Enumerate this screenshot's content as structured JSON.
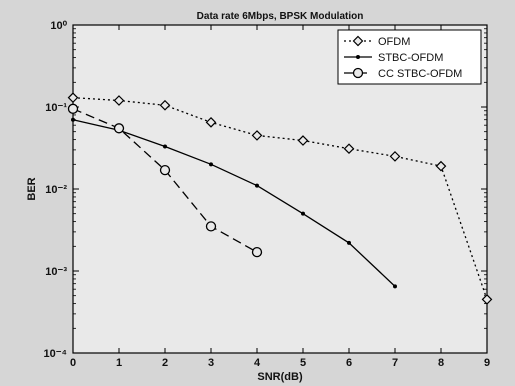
{
  "chart_data": {
    "type": "line",
    "title": "Data rate 6Mbps, BPSK Modulation",
    "xlabel": "SNR(dB)",
    "ylabel": "BER",
    "xlim": [
      0,
      9
    ],
    "ylim": [
      0.0001,
      1
    ],
    "yscale": "log",
    "grid": false,
    "legend_position": "top-right",
    "x_ticks": [
      "0",
      "1",
      "2",
      "3",
      "4",
      "5",
      "6",
      "7",
      "8",
      "9"
    ],
    "y_ticks": [
      {
        "value": 1,
        "label": "10⁰"
      },
      {
        "value": 0.1,
        "label": "10⁻¹"
      },
      {
        "value": 0.01,
        "label": "10⁻²"
      },
      {
        "value": 0.001,
        "label": "10⁻³"
      },
      {
        "value": 0.0001,
        "label": "10⁻⁴"
      }
    ],
    "series": [
      {
        "name": "OFDM",
        "style": "dotted",
        "marker": "diamond",
        "color": "#000000",
        "x": [
          0,
          1,
          2,
          3,
          4,
          5,
          6,
          7,
          8,
          9
        ],
        "values": [
          0.13,
          0.12,
          0.105,
          0.065,
          0.045,
          0.039,
          0.031,
          0.025,
          0.019,
          0.00045
        ]
      },
      {
        "name": "STBC-OFDM",
        "style": "solid",
        "marker": "dot",
        "color": "#000000",
        "x": [
          0,
          1,
          2,
          3,
          4,
          5,
          6,
          7
        ],
        "values": [
          0.07,
          0.052,
          0.033,
          0.02,
          0.011,
          0.005,
          0.0022,
          0.00065
        ]
      },
      {
        "name": "CC STBC-OFDM",
        "style": "dashed",
        "marker": "circle",
        "color": "#000000",
        "x": [
          0,
          1,
          2,
          3,
          4
        ],
        "values": [
          0.095,
          0.055,
          0.017,
          0.0035,
          0.0017
        ]
      }
    ]
  }
}
